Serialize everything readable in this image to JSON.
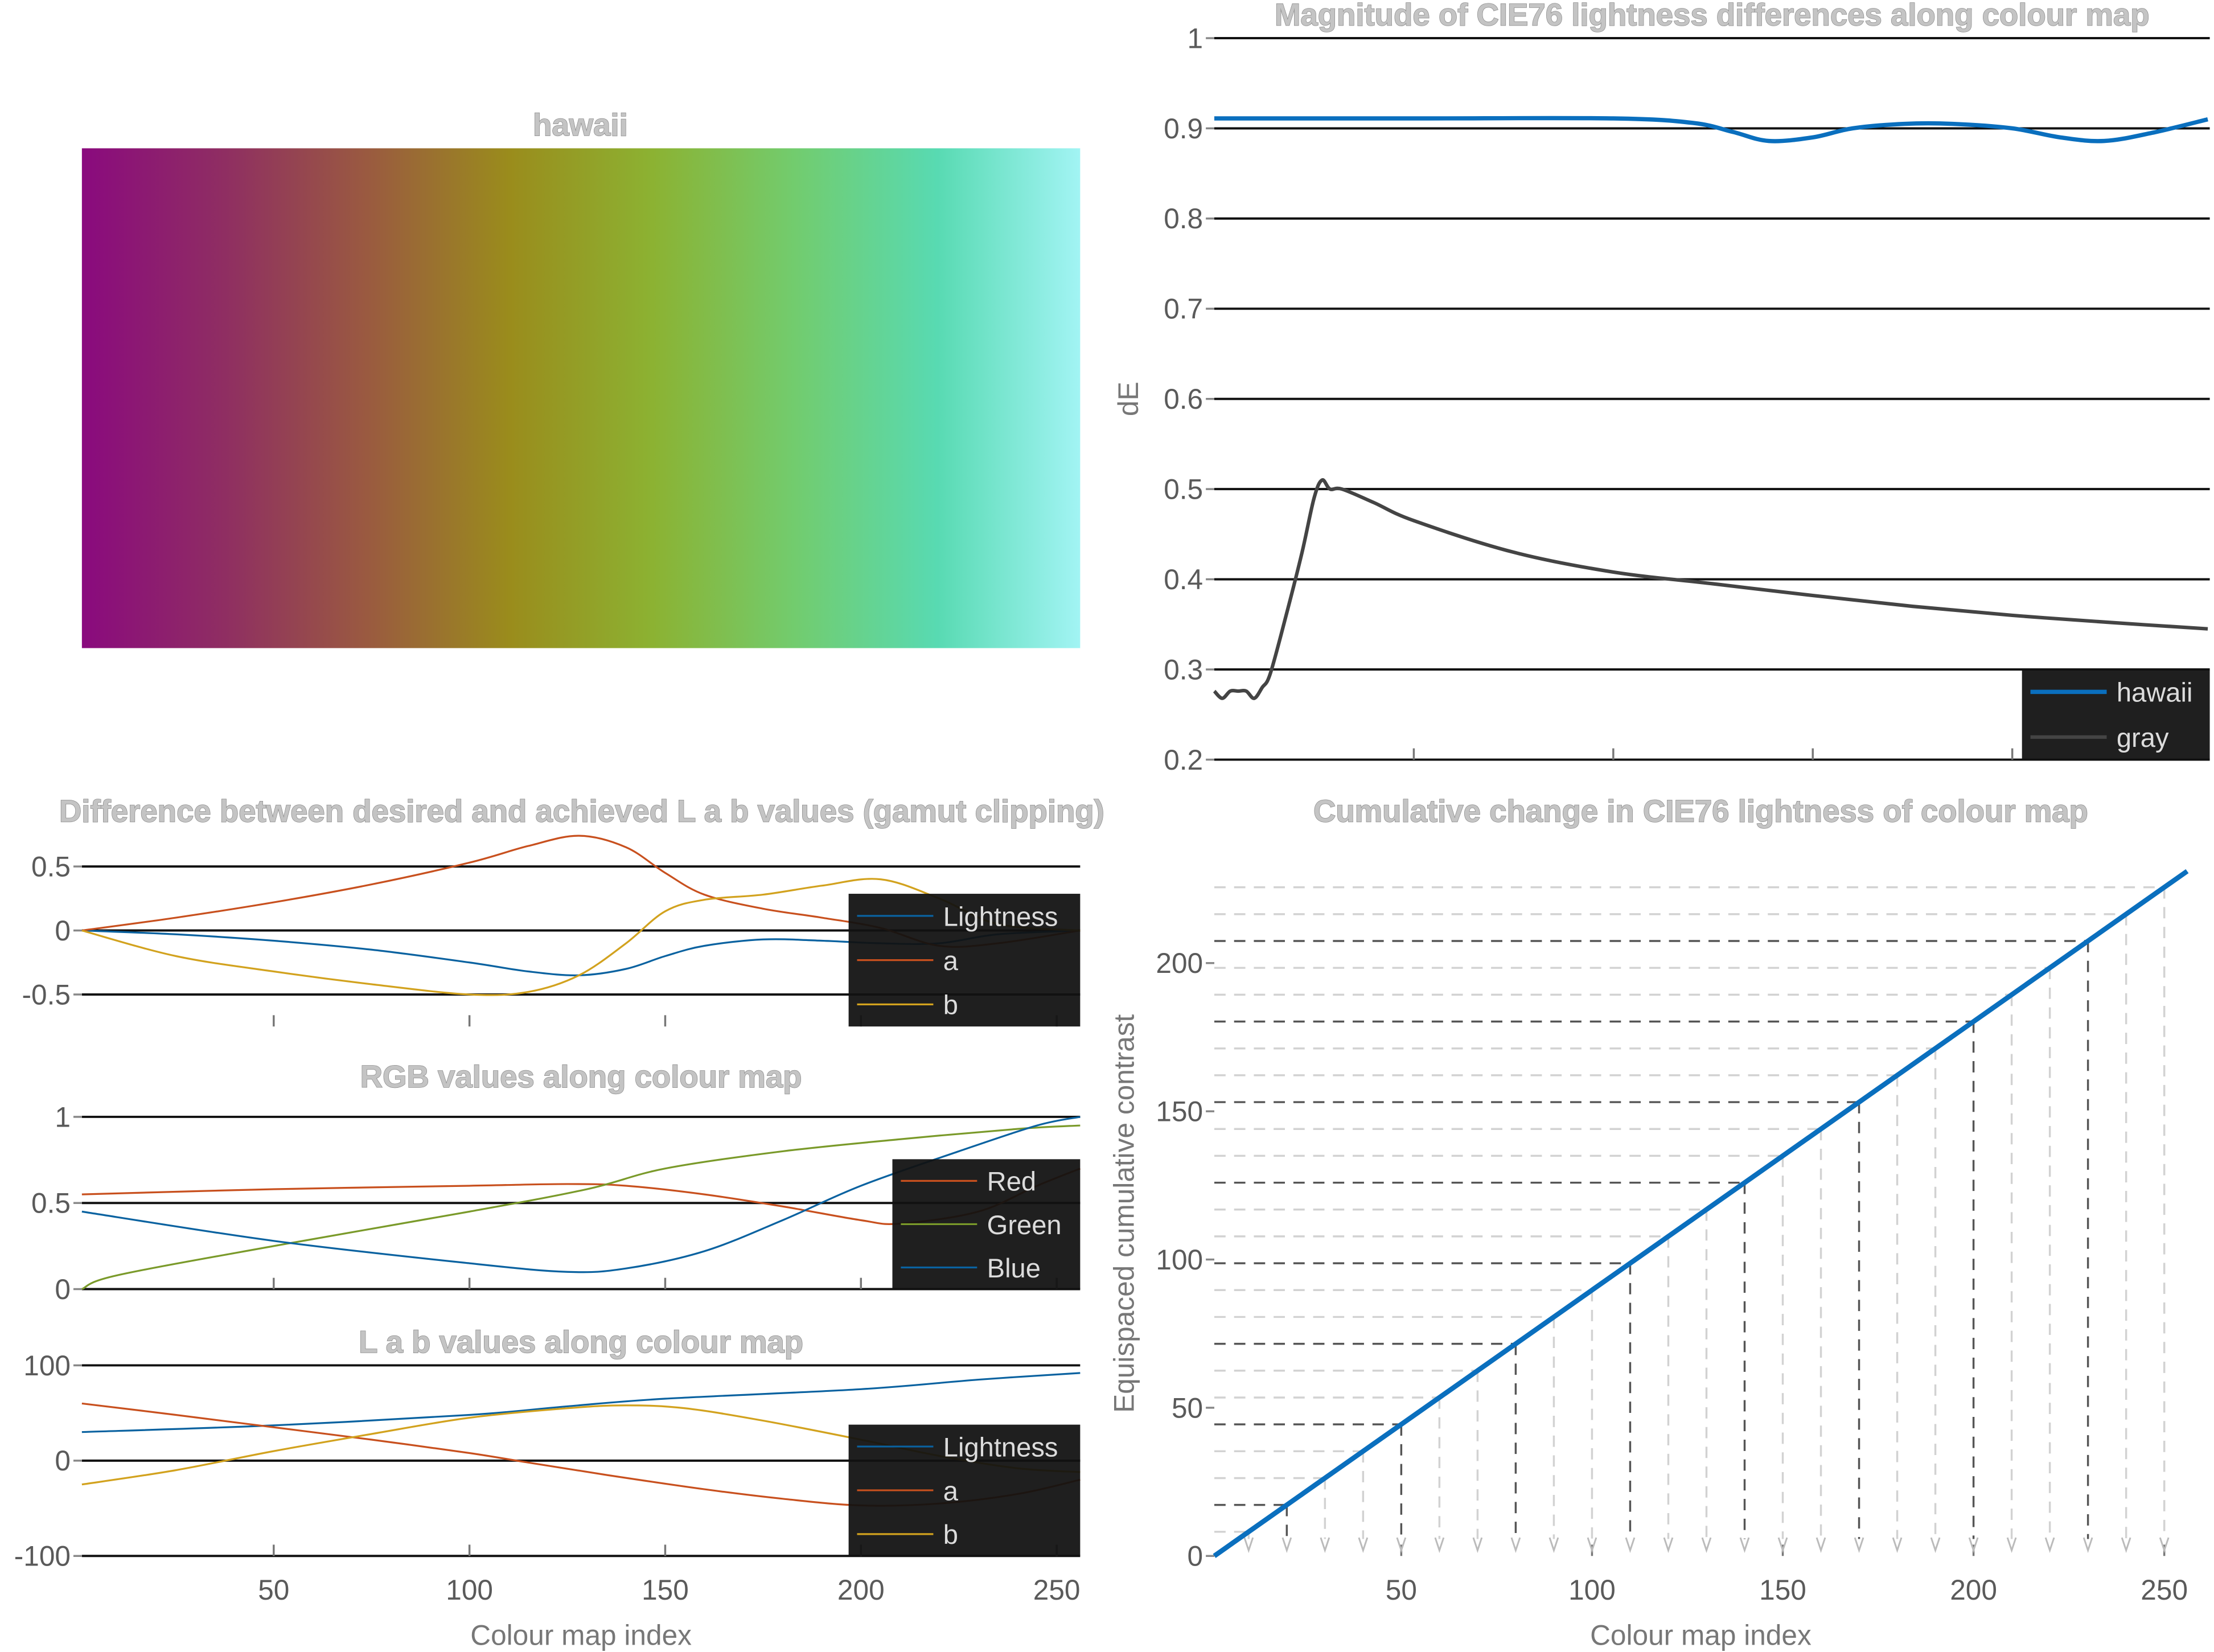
{
  "colormap": {
    "title": "hawaii",
    "gradient_colors": [
      "#8a0a7e",
      "#8f2e62",
      "#9a5a40",
      "#9a8c1c",
      "#8cb232",
      "#72cc6e",
      "#58dab2",
      "#a2f4f4"
    ]
  },
  "colors": {
    "gridline": "#111111",
    "legend_bg": "#111111",
    "hawaii": "#0a6fbe",
    "gray": "#444444",
    "lightness": "#0a62a0",
    "a": "#c8501e",
    "b": "#d2a21e",
    "red": "#c8501e",
    "green": "#7a9a2a",
    "blue": "#0a62a0"
  },
  "chart_data": [
    {
      "id": "dE",
      "type": "line",
      "title": "Magnitude of CIE76 lightness differences along colour map",
      "ylabel": "dE",
      "xlabel": "",
      "xlim": [
        0,
        249.5
      ],
      "ylim": [
        0.2,
        1
      ],
      "yticks": [
        0.2,
        0.3,
        0.4,
        0.5,
        0.6,
        0.7,
        0.8,
        0.9,
        1
      ],
      "ytick_labels": [
        "0.2",
        "0.3",
        "0.4",
        "0.5",
        "0.6",
        "0.7",
        "0.8",
        "0.9",
        "1"
      ],
      "xticks": [
        50,
        100,
        150,
        200
      ],
      "xtick_labels": [],
      "grid": true,
      "legend": "bottom-right",
      "series": [
        {
          "name": "hawaii",
          "color": "#0a6fbe",
          "width": 3,
          "x": [
            0,
            50,
            100,
            120,
            130,
            139,
            150,
            160,
            173,
            185,
            200,
            212,
            223,
            235,
            249
          ],
          "y": [
            0.911,
            0.911,
            0.911,
            0.906,
            0.896,
            0.886,
            0.89,
            0.9,
            0.905,
            0.905,
            0.9,
            0.89,
            0.886,
            0.895,
            0.91
          ]
        },
        {
          "name": "gray",
          "color": "#444444",
          "width": 2.5,
          "x": [
            0,
            2,
            4,
            6,
            8,
            10,
            12,
            14,
            18,
            22,
            25,
            27,
            29,
            32,
            40,
            50,
            75,
            100,
            125,
            150,
            175,
            200,
            225,
            249
          ],
          "y": [
            0.276,
            0.268,
            0.276,
            0.276,
            0.276,
            0.268,
            0.28,
            0.295,
            0.36,
            0.43,
            0.49,
            0.51,
            0.5,
            0.5,
            0.485,
            0.465,
            0.43,
            0.408,
            0.395,
            0.382,
            0.37,
            0.36,
            0.352,
            0.345
          ]
        }
      ]
    },
    {
      "id": "diff",
      "type": "line",
      "title": "Difference between desired and achieved L a b values (gamut clipping)",
      "xlabel": "",
      "xlim": [
        1,
        256
      ],
      "ylim": [
        -0.75,
        0.75
      ],
      "yticks": [
        -0.5,
        0,
        0.5
      ],
      "ytick_labels": [
        "-0.5",
        "0",
        "0.5"
      ],
      "xticks": [
        50,
        100,
        150,
        200,
        250
      ],
      "xtick_labels": [],
      "grid": true,
      "legend": "bottom-right",
      "series": [
        {
          "name": "Lightness",
          "color": "#0a62a0",
          "width": 1.3,
          "x": [
            1,
            25,
            50,
            75,
            100,
            115,
            128,
            140,
            150,
            160,
            175,
            190,
            205,
            220,
            235,
            256
          ],
          "y": [
            0,
            -0.03,
            -0.08,
            -0.15,
            -0.25,
            -0.32,
            -0.35,
            -0.3,
            -0.2,
            -0.12,
            -0.07,
            -0.08,
            -0.1,
            -0.1,
            -0.03,
            0
          ]
        },
        {
          "name": "a",
          "color": "#c8501e",
          "width": 1.3,
          "x": [
            1,
            25,
            50,
            75,
            100,
            115,
            128,
            140,
            150,
            160,
            175,
            190,
            205,
            220,
            235,
            256
          ],
          "y": [
            0,
            0.1,
            0.22,
            0.36,
            0.53,
            0.66,
            0.74,
            0.65,
            0.45,
            0.28,
            0.17,
            0.1,
            0.02,
            -0.12,
            -0.1,
            0
          ]
        },
        {
          "name": "b",
          "color": "#d2a21e",
          "width": 1.3,
          "x": [
            1,
            25,
            50,
            75,
            100,
            115,
            128,
            140,
            150,
            160,
            175,
            190,
            205,
            220,
            235,
            256
          ],
          "y": [
            0,
            -0.2,
            -0.32,
            -0.42,
            -0.5,
            -0.48,
            -0.35,
            -0.1,
            0.15,
            0.24,
            0.28,
            0.35,
            0.4,
            0.25,
            0.05,
            0
          ]
        }
      ]
    },
    {
      "id": "rgb",
      "type": "line",
      "title": "RGB values along colour map",
      "xlabel": "",
      "xlim": [
        1,
        256
      ],
      "ylim": [
        0,
        1
      ],
      "yticks": [
        0,
        0.5,
        1
      ],
      "ytick_labels": [
        "0",
        "0.5",
        "1"
      ],
      "xticks": [
        50,
        100,
        150,
        200,
        250
      ],
      "xtick_labels": [],
      "grid": true,
      "legend": "bottom-right",
      "series": [
        {
          "name": "Red",
          "color": "#c8501e",
          "width": 1.3,
          "x": [
            1,
            50,
            100,
            125,
            140,
            160,
            180,
            200,
            210,
            230,
            245,
            256
          ],
          "y": [
            0.55,
            0.58,
            0.6,
            0.61,
            0.6,
            0.55,
            0.48,
            0.4,
            0.38,
            0.45,
            0.6,
            0.7
          ]
        },
        {
          "name": "Green",
          "color": "#7a9a2a",
          "width": 1.3,
          "x": [
            1,
            10,
            50,
            100,
            130,
            150,
            180,
            210,
            240,
            256
          ],
          "y": [
            0,
            0.08,
            0.25,
            0.45,
            0.58,
            0.7,
            0.8,
            0.87,
            0.93,
            0.95
          ]
        },
        {
          "name": "Blue",
          "color": "#0a62a0",
          "width": 1.3,
          "x": [
            1,
            50,
            100,
            125,
            140,
            160,
            180,
            200,
            225,
            245,
            256
          ],
          "y": [
            0.45,
            0.28,
            0.15,
            0.1,
            0.12,
            0.22,
            0.4,
            0.6,
            0.8,
            0.95,
            1
          ]
        }
      ]
    },
    {
      "id": "lab",
      "type": "line",
      "title": "L a b values along colour map",
      "xlabel": "Colour map index",
      "xlim": [
        1,
        256
      ],
      "ylim": [
        -100,
        100
      ],
      "yticks": [
        -100,
        0,
        100
      ],
      "ytick_labels": [
        "-100",
        "0",
        "100"
      ],
      "xticks": [
        50,
        100,
        150,
        200,
        250
      ],
      "xtick_labels": [
        "50",
        "100",
        "150",
        "200",
        "250"
      ],
      "grid": true,
      "legend": "bottom-right",
      "series": [
        {
          "name": "Lightness",
          "color": "#0a62a0",
          "width": 1.3,
          "x": [
            1,
            50,
            100,
            125,
            150,
            200,
            230,
            256
          ],
          "y": [
            30,
            37,
            48,
            57,
            65,
            75,
            85,
            92
          ]
        },
        {
          "name": "a",
          "color": "#c8501e",
          "width": 1.3,
          "x": [
            1,
            25,
            50,
            75,
            100,
            115,
            135,
            160,
            180,
            200,
            220,
            240,
            256
          ],
          "y": [
            60,
            48,
            35,
            22,
            8,
            -2,
            -15,
            -30,
            -40,
            -47,
            -45,
            -35,
            -20
          ]
        },
        {
          "name": "b",
          "color": "#d2a21e",
          "width": 1.3,
          "x": [
            1,
            25,
            50,
            75,
            100,
            125,
            140,
            155,
            175,
            200,
            220,
            240,
            256
          ],
          "y": [
            -25,
            -10,
            10,
            28,
            45,
            55,
            58,
            55,
            42,
            22,
            5,
            -8,
            -12
          ]
        }
      ]
    },
    {
      "id": "cum",
      "type": "line",
      "title": "Cumulative change in CIE76 lightness of colour map",
      "xlabel": "Colour map index",
      "ylabel": "Equispaced cumulative contrast",
      "xlim": [
        1,
        256
      ],
      "ylim": [
        0,
        231
      ],
      "yticks": [
        0,
        50,
        100,
        150,
        200
      ],
      "ytick_labels": [
        "0",
        "50",
        "100",
        "150",
        "200"
      ],
      "xticks": [
        50,
        100,
        150,
        200,
        250
      ],
      "xtick_labels": [
        "50",
        "100",
        "150",
        "200",
        "250"
      ],
      "grid": false,
      "legend": "none",
      "series": [
        {
          "color": "#0a6fbe",
          "width": 3.5,
          "x": [
            1,
            256
          ],
          "y": [
            0,
            231
          ]
        }
      ],
      "guide_indices": [
        10,
        20,
        30,
        40,
        50,
        60,
        70,
        80,
        90,
        100,
        110,
        120,
        130,
        140,
        150,
        160,
        170,
        180,
        190,
        200,
        210,
        220,
        230,
        240,
        250
      ]
    }
  ]
}
